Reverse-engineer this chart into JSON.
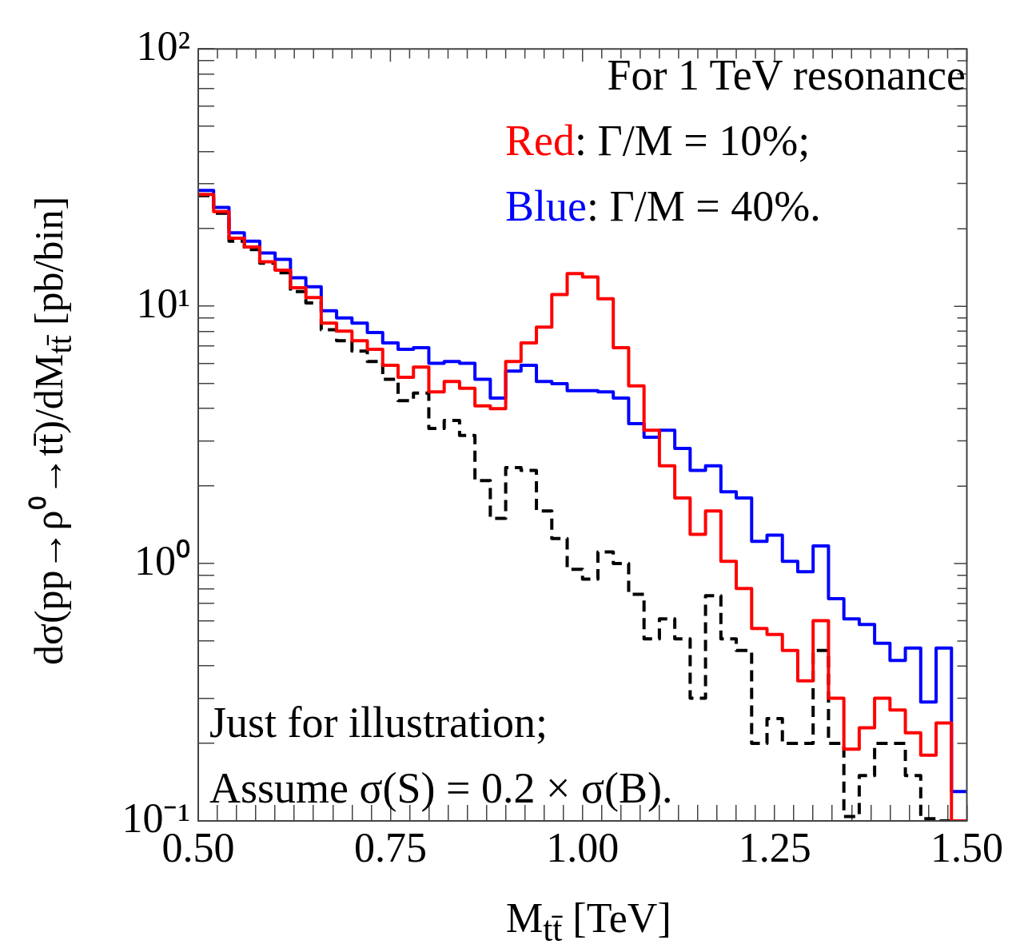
{
  "chart_data": {
    "type": "histogram",
    "xlabel": "M$_{tt̄}$ [TeV]",
    "ylabel": "dσ(pp→ρ⁰→tt̄)/dM$_{tt̄}$ [pb/bin]",
    "log": "y",
    "grid": false,
    "legend": false,
    "bins": [
      0.5,
      0.52,
      0.54,
      0.56,
      0.58,
      0.6,
      0.62,
      0.64,
      0.66,
      0.68,
      0.7,
      0.72,
      0.74,
      0.76,
      0.78,
      0.8,
      0.82,
      0.84,
      0.86,
      0.88,
      0.9,
      0.92,
      0.94,
      0.96,
      0.98,
      1.0,
      1.02,
      1.04,
      1.06,
      1.08,
      1.1,
      1.12,
      1.14,
      1.16,
      1.18,
      1.2,
      1.22,
      1.24,
      1.26,
      1.28,
      1.3,
      1.32,
      1.34,
      1.36,
      1.38,
      1.4,
      1.42,
      1.44,
      1.46,
      1.48,
      1.5
    ],
    "xlim": [
      0.5,
      1.5
    ],
    "xticks": [
      {
        "value": 0.5,
        "label": "0.50"
      },
      {
        "value": 0.525,
        "label": null
      },
      {
        "value": 0.55,
        "label": null
      },
      {
        "value": 0.575,
        "label": null
      },
      {
        "value": 0.6,
        "label": null
      },
      {
        "value": 0.625,
        "label": null
      },
      {
        "value": 0.65,
        "label": null
      },
      {
        "value": 0.675,
        "label": null
      },
      {
        "value": 0.7,
        "label": null
      },
      {
        "value": 0.725,
        "label": null
      },
      {
        "value": 0.75,
        "label": "0.75"
      },
      {
        "value": 0.775,
        "label": null
      },
      {
        "value": 0.8,
        "label": null
      },
      {
        "value": 0.825,
        "label": null
      },
      {
        "value": 0.85,
        "label": null
      },
      {
        "value": 0.875,
        "label": null
      },
      {
        "value": 0.9,
        "label": null
      },
      {
        "value": 0.925,
        "label": null
      },
      {
        "value": 0.95,
        "label": null
      },
      {
        "value": 0.975,
        "label": null
      },
      {
        "value": 1.0,
        "label": "1.00"
      },
      {
        "value": 1.025,
        "label": null
      },
      {
        "value": 1.05,
        "label": null
      },
      {
        "value": 1.075,
        "label": null
      },
      {
        "value": 1.1,
        "label": null
      },
      {
        "value": 1.125,
        "label": null
      },
      {
        "value": 1.15,
        "label": null
      },
      {
        "value": 1.175,
        "label": null
      },
      {
        "value": 1.2,
        "label": null
      },
      {
        "value": 1.225,
        "label": null
      },
      {
        "value": 1.25,
        "label": "1.25"
      },
      {
        "value": 1.275,
        "label": null
      },
      {
        "value": 1.3,
        "label": null
      },
      {
        "value": 1.325,
        "label": null
      },
      {
        "value": 1.35,
        "label": null
      },
      {
        "value": 1.375,
        "label": null
      },
      {
        "value": 1.4,
        "label": null
      },
      {
        "value": 1.425,
        "label": null
      },
      {
        "value": 1.45,
        "label": null
      },
      {
        "value": 1.475,
        "label": null
      },
      {
        "value": 1.5,
        "label": "1.50"
      }
    ],
    "ylim": [
      0.1,
      100
    ],
    "yticks": [
      {
        "value": 0.1,
        "label": "10⁻¹"
      },
      {
        "value": 0.2,
        "label": null
      },
      {
        "value": 0.3,
        "label": null
      },
      {
        "value": 0.4,
        "label": null
      },
      {
        "value": 0.5,
        "label": null
      },
      {
        "value": 0.6,
        "label": null
      },
      {
        "value": 0.7,
        "label": null
      },
      {
        "value": 0.8,
        "label": null
      },
      {
        "value": 0.9,
        "label": null
      },
      {
        "value": 1,
        "label": "10⁰"
      },
      {
        "value": 2,
        "label": null
      },
      {
        "value": 3,
        "label": null
      },
      {
        "value": 4,
        "label": null
      },
      {
        "value": 5,
        "label": null
      },
      {
        "value": 6,
        "label": null
      },
      {
        "value": 7,
        "label": null
      },
      {
        "value": 8,
        "label": null
      },
      {
        "value": 9,
        "label": null
      },
      {
        "value": 10,
        "label": "10¹"
      },
      {
        "value": 20,
        "label": null
      },
      {
        "value": 30,
        "label": null
      },
      {
        "value": 40,
        "label": null
      },
      {
        "value": 50,
        "label": null
      },
      {
        "value": 60,
        "label": null
      },
      {
        "value": 70,
        "label": null
      },
      {
        "value": 80,
        "label": null
      },
      {
        "value": 90,
        "label": null
      },
      {
        "value": 100,
        "label": "10²"
      }
    ],
    "series": [
      {
        "color": "#ff0000",
        "line_style": "solid",
        "values": [
          27.2,
          23.3,
          18.4,
          17.0,
          14.9,
          13.8,
          11.8,
          10.8,
          8.6,
          8.0,
          7.35,
          6.8,
          5.9,
          5.3,
          5.8,
          4.65,
          5.1,
          4.8,
          4.1,
          4.0,
          6.1,
          7.2,
          8.3,
          11.1,
          13.4,
          13.0,
          10.7,
          6.9,
          4.9,
          3.3,
          2.4,
          1.8,
          1.3,
          1.6,
          1.02,
          0.8,
          0.56,
          0.53,
          0.46,
          0.35,
          0.6,
          0.3,
          0.19,
          0.23,
          0.3,
          0.27,
          0.22,
          0.18,
          0.24,
          0.1
        ]
      },
      {
        "color": "#0000ff",
        "line_style": "solid",
        "values": [
          28.2,
          24.2,
          19.3,
          17.9,
          16.1,
          15.2,
          12.9,
          11.9,
          9.6,
          9.0,
          8.6,
          7.9,
          7.2,
          6.8,
          6.9,
          6.0,
          6.1,
          6.0,
          5.2,
          4.4,
          5.6,
          5.9,
          5.1,
          5.0,
          4.7,
          4.7,
          4.65,
          4.4,
          3.5,
          3.1,
          3.3,
          2.8,
          2.3,
          2.4,
          1.9,
          1.8,
          1.22,
          1.29,
          1.02,
          0.93,
          1.17,
          0.73,
          0.61,
          0.58,
          0.49,
          0.42,
          0.47,
          0.29,
          0.47,
          0.13
        ]
      },
      {
        "color": "#000000",
        "line_style": "dashed",
        "values": [
          26.9,
          23.0,
          17.9,
          16.6,
          14.7,
          13.5,
          11.4,
          10.3,
          8.1,
          7.35,
          6.7,
          6.1,
          5.2,
          4.3,
          4.6,
          3.35,
          3.6,
          3.15,
          2.1,
          1.5,
          2.36,
          2.3,
          1.6,
          1.25,
          0.95,
          0.87,
          1.11,
          1.0,
          0.76,
          0.51,
          0.61,
          0.51,
          0.3,
          0.75,
          0.51,
          0.46,
          0.2,
          0.25,
          0.2,
          0.2,
          0.46,
          0.2,
          0.104,
          0.15,
          0.2,
          0.2,
          0.15,
          0.102,
          0.1,
          0.1
        ]
      }
    ],
    "annotations": [
      "For 1 TeV resonance",
      "Red: Γ/M = 10%;",
      "Blue: Γ/M = 40%.",
      "Just for illustration;",
      "Assume σ(S) = 0.2 × σ(B)."
    ]
  }
}
